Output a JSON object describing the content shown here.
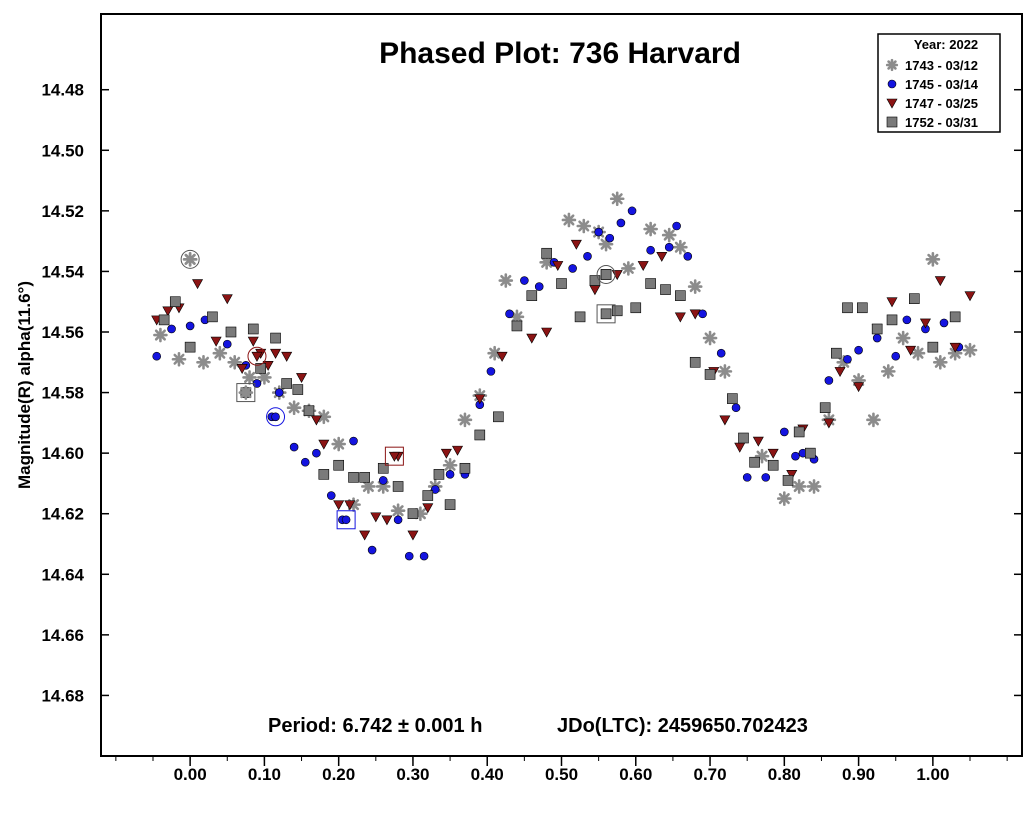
{
  "chart_data": {
    "type": "scatter",
    "title": "Phased Plot: 736 Harvard",
    "xlabel": "",
    "ylabel": "Magnitude(R) alpha(11.6°)",
    "xlim": [
      -0.12,
      1.12
    ],
    "ylim": [
      14.455,
      14.7
    ],
    "y_inverted": true,
    "x_ticks": [
      0.0,
      0.1,
      0.2,
      0.3,
      0.4,
      0.5,
      0.6,
      0.7,
      0.8,
      0.9,
      1.0
    ],
    "x_tick_labels": [
      "0.00",
      "0.10",
      "0.20",
      "0.30",
      "0.40",
      "0.50",
      "0.60",
      "0.70",
      "0.80",
      "0.90",
      "1.00"
    ],
    "y_ticks": [
      14.48,
      14.5,
      14.52,
      14.54,
      14.56,
      14.58,
      14.6,
      14.62,
      14.64,
      14.66,
      14.68
    ],
    "y_tick_labels": [
      "14.48",
      "14.50",
      "14.52",
      "14.54",
      "14.56",
      "14.58",
      "14.60",
      "14.62",
      "14.64",
      "14.66",
      "14.68"
    ],
    "grid": false,
    "legend_title": "Year: 2022",
    "legend_position": "top-right",
    "annotations": {
      "period": "Period: 6.742 ± 0.001 h",
      "jdo": "JDo(LTC): 2459650.702423"
    },
    "series": [
      {
        "name": "1743 - 03/12",
        "marker": "asterisk",
        "color": "#8c8c8c",
        "x": [
          -0.04,
          -0.015,
          0.0,
          0.018,
          0.04,
          0.06,
          0.08,
          0.1,
          0.12,
          0.14,
          0.16,
          0.18,
          0.2,
          0.22,
          0.24,
          0.26,
          0.28,
          0.31,
          0.33,
          0.35,
          0.37,
          0.39,
          0.41,
          0.425,
          0.44,
          0.48,
          0.51,
          0.53,
          0.55,
          0.56,
          0.575,
          0.59,
          0.62,
          0.645,
          0.66,
          0.68,
          0.7,
          0.72,
          0.77,
          0.8,
          0.82,
          0.84,
          0.86,
          0.88,
          0.9,
          0.92,
          0.94,
          0.96,
          0.98,
          1.0,
          1.01,
          1.03,
          1.05
        ],
        "y": [
          14.561,
          14.569,
          14.536,
          14.57,
          14.567,
          14.57,
          14.575,
          14.575,
          14.58,
          14.585,
          14.586,
          14.588,
          14.597,
          14.617,
          14.611,
          14.611,
          14.619,
          14.62,
          14.611,
          14.604,
          14.589,
          14.581,
          14.567,
          14.543,
          14.555,
          14.537,
          14.523,
          14.525,
          14.527,
          14.531,
          14.516,
          14.539,
          14.526,
          14.528,
          14.532,
          14.545,
          14.562,
          14.573,
          14.601,
          14.615,
          14.611,
          14.611,
          14.589,
          14.57,
          14.576,
          14.589,
          14.573,
          14.562,
          14.567,
          14.536,
          14.57,
          14.567,
          14.566
        ]
      },
      {
        "name": "1745 - 03/14",
        "marker": "circle",
        "color": "#1414e0",
        "x": [
          -0.045,
          -0.025,
          0.0,
          0.02,
          0.05,
          0.075,
          0.09,
          0.11,
          0.12,
          0.14,
          0.155,
          0.17,
          0.19,
          0.205,
          0.22,
          0.245,
          0.26,
          0.28,
          0.295,
          0.315,
          0.33,
          0.35,
          0.37,
          0.39,
          0.405,
          0.43,
          0.45,
          0.47,
          0.49,
          0.515,
          0.535,
          0.55,
          0.565,
          0.58,
          0.595,
          0.62,
          0.645,
          0.655,
          0.67,
          0.69,
          0.715,
          0.735,
          0.75,
          0.775,
          0.8,
          0.815,
          0.825,
          0.84,
          0.86,
          0.885,
          0.9,
          0.925,
          0.95,
          0.965,
          0.99,
          1.015,
          1.035
        ],
        "y": [
          14.568,
          14.559,
          14.558,
          14.556,
          14.564,
          14.571,
          14.577,
          14.588,
          14.58,
          14.598,
          14.603,
          14.6,
          14.614,
          14.622,
          14.596,
          14.632,
          14.609,
          14.622,
          14.634,
          14.634,
          14.612,
          14.607,
          14.607,
          14.584,
          14.573,
          14.554,
          14.543,
          14.545,
          14.537,
          14.539,
          14.535,
          14.527,
          14.529,
          14.524,
          14.52,
          14.533,
          14.532,
          14.525,
          14.535,
          14.554,
          14.567,
          14.585,
          14.608,
          14.608,
          14.593,
          14.601,
          14.6,
          14.602,
          14.576,
          14.569,
          14.566,
          14.562,
          14.568,
          14.556,
          14.559,
          14.557,
          14.565
        ]
      },
      {
        "name": "1747 - 03/25",
        "marker": "triangle-down",
        "color": "#8b1414",
        "x": [
          -0.045,
          -0.03,
          -0.015,
          0.01,
          0.035,
          0.05,
          0.07,
          0.085,
          0.095,
          0.105,
          0.115,
          0.13,
          0.15,
          0.17,
          0.18,
          0.2,
          0.215,
          0.235,
          0.25,
          0.265,
          0.28,
          0.3,
          0.32,
          0.345,
          0.36,
          0.39,
          0.42,
          0.46,
          0.48,
          0.495,
          0.52,
          0.545,
          0.575,
          0.61,
          0.635,
          0.66,
          0.68,
          0.705,
          0.72,
          0.74,
          0.765,
          0.785,
          0.81,
          0.825,
          0.86,
          0.875,
          0.9,
          0.925,
          0.945,
          0.97,
          0.99,
          1.01,
          1.03,
          1.05
        ],
        "y": [
          14.556,
          14.553,
          14.552,
          14.544,
          14.563,
          14.549,
          14.572,
          14.563,
          14.567,
          14.571,
          14.567,
          14.568,
          14.575,
          14.589,
          14.597,
          14.617,
          14.617,
          14.627,
          14.621,
          14.622,
          14.601,
          14.627,
          14.618,
          14.6,
          14.599,
          14.582,
          14.568,
          14.562,
          14.56,
          14.538,
          14.531,
          14.546,
          14.541,
          14.538,
          14.535,
          14.555,
          14.554,
          14.573,
          14.589,
          14.598,
          14.596,
          14.6,
          14.607,
          14.592,
          14.59,
          14.573,
          14.578,
          14.559,
          14.55,
          14.566,
          14.557,
          14.543,
          14.565,
          14.548
        ]
      },
      {
        "name": "1752 - 03/31",
        "marker": "square",
        "color": "#7a7a7a",
        "x": [
          -0.035,
          -0.02,
          0.0,
          0.03,
          0.055,
          0.075,
          0.085,
          0.095,
          0.115,
          0.13,
          0.145,
          0.16,
          0.18,
          0.2,
          0.22,
          0.235,
          0.26,
          0.28,
          0.3,
          0.32,
          0.335,
          0.35,
          0.37,
          0.39,
          0.415,
          0.44,
          0.46,
          0.48,
          0.5,
          0.525,
          0.545,
          0.56,
          0.575,
          0.6,
          0.62,
          0.64,
          0.66,
          0.68,
          0.7,
          0.73,
          0.745,
          0.76,
          0.785,
          0.805,
          0.82,
          0.835,
          0.855,
          0.87,
          0.885,
          0.905,
          0.925,
          0.945,
          0.975,
          1.0,
          1.03
        ],
        "y": [
          14.556,
          14.55,
          14.565,
          14.555,
          14.56,
          14.58,
          14.559,
          14.572,
          14.562,
          14.577,
          14.579,
          14.586,
          14.607,
          14.604,
          14.608,
          14.608,
          14.605,
          14.611,
          14.62,
          14.614,
          14.607,
          14.617,
          14.605,
          14.594,
          14.588,
          14.558,
          14.548,
          14.534,
          14.544,
          14.555,
          14.543,
          14.541,
          14.553,
          14.552,
          14.544,
          14.546,
          14.548,
          14.57,
          14.574,
          14.582,
          14.595,
          14.603,
          14.604,
          14.609,
          14.593,
          14.6,
          14.585,
          14.567,
          14.552,
          14.552,
          14.559,
          14.556,
          14.549,
          14.565,
          14.555
        ]
      }
    ],
    "highlighted_points": [
      {
        "series": 0,
        "x": 0.0,
        "y": 14.536,
        "marker": "circle-outline"
      },
      {
        "series": 1,
        "x": 0.115,
        "y": 14.588,
        "marker": "circle-outline"
      },
      {
        "series": 2,
        "x": 0.09,
        "y": 14.568,
        "marker": "circle-outline"
      },
      {
        "series": 3,
        "x": 0.56,
        "y": 14.541,
        "marker": "circle-outline"
      },
      {
        "series": 0,
        "x": 0.075,
        "y": 14.58,
        "marker": "square-outline"
      },
      {
        "series": 1,
        "x": 0.21,
        "y": 14.622,
        "marker": "square-outline"
      },
      {
        "series": 2,
        "x": 0.275,
        "y": 14.601,
        "marker": "square-outline"
      },
      {
        "series": 3,
        "x": 0.56,
        "y": 14.554,
        "marker": "square-outline"
      }
    ]
  }
}
